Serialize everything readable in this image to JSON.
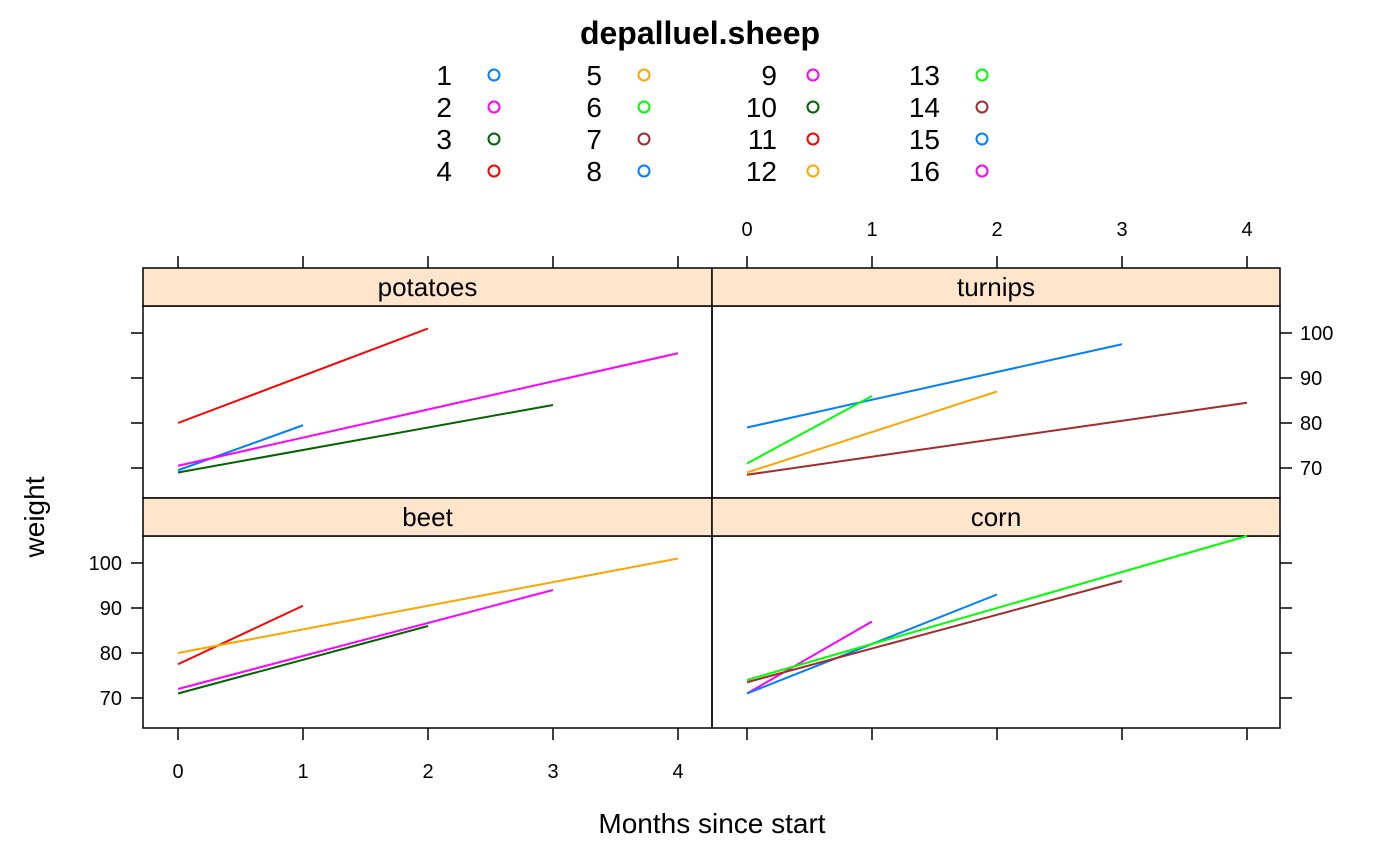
{
  "chart_data": {
    "type": "line",
    "title": "depalluel.sheep",
    "xlabel": "Months since start",
    "ylabel": "weight",
    "xlim": [
      0,
      4
    ],
    "ylim": [
      66,
      108
    ],
    "x_ticks": [
      0,
      1,
      2,
      3,
      4
    ],
    "y_ticks": [
      70,
      80,
      90,
      100
    ],
    "legend": {
      "position": "top",
      "entries": [
        {
          "label": "1",
          "color": "#0080ff"
        },
        {
          "label": "2",
          "color": "#ff00ff"
        },
        {
          "label": "3",
          "color": "#006400"
        },
        {
          "label": "4",
          "color": "#ff0000"
        },
        {
          "label": "5",
          "color": "#ffa500"
        },
        {
          "label": "6",
          "color": "#00ff00"
        },
        {
          "label": "7",
          "color": "#a52a2a"
        },
        {
          "label": "8",
          "color": "#0080ff"
        },
        {
          "label": "9",
          "color": "#ff00ff"
        },
        {
          "label": "10",
          "color": "#006400"
        },
        {
          "label": "11",
          "color": "#ff0000"
        },
        {
          "label": "12",
          "color": "#ffa500"
        },
        {
          "label": "13",
          "color": "#00ff00"
        },
        {
          "label": "14",
          "color": "#a52a2a"
        },
        {
          "label": "15",
          "color": "#0080ff"
        },
        {
          "label": "16",
          "color": "#ff00ff"
        }
      ]
    },
    "panels": [
      {
        "name": "potatoes",
        "series": [
          {
            "color": "#ff0000",
            "x": [
              0,
              2
            ],
            "y": [
              80,
              101
            ]
          },
          {
            "color": "#0080ff",
            "x": [
              0,
              1
            ],
            "y": [
              69.5,
              79.5
            ]
          },
          {
            "color": "#ff00ff",
            "x": [
              0,
              4
            ],
            "y": [
              70.5,
              95.5
            ]
          },
          {
            "color": "#006400",
            "x": [
              0,
              3
            ],
            "y": [
              69,
              84
            ]
          }
        ]
      },
      {
        "name": "turnips",
        "series": [
          {
            "color": "#0080ff",
            "x": [
              0,
              3
            ],
            "y": [
              79,
              97.5
            ]
          },
          {
            "color": "#00ff00",
            "x": [
              0,
              1
            ],
            "y": [
              71,
              86
            ]
          },
          {
            "color": "#ffa500",
            "x": [
              0,
              2
            ],
            "y": [
              69,
              87
            ]
          },
          {
            "color": "#a52a2a",
            "x": [
              0,
              4
            ],
            "y": [
              68.5,
              84.5
            ]
          }
        ]
      },
      {
        "name": "beet",
        "series": [
          {
            "color": "#ff0000",
            "x": [
              0,
              1
            ],
            "y": [
              77.5,
              90.5
            ]
          },
          {
            "color": "#ffa500",
            "x": [
              0,
              4
            ],
            "y": [
              80,
              101
            ]
          },
          {
            "color": "#ff00ff",
            "x": [
              0,
              3
            ],
            "y": [
              72,
              94
            ]
          },
          {
            "color": "#006400",
            "x": [
              0,
              2
            ],
            "y": [
              71,
              86
            ]
          }
        ]
      },
      {
        "name": "corn",
        "series": [
          {
            "color": "#ff00ff",
            "x": [
              0,
              1
            ],
            "y": [
              71,
              87
            ]
          },
          {
            "color": "#0080ff",
            "x": [
              0,
              2
            ],
            "y": [
              71,
              93
            ]
          },
          {
            "color": "#00ff00",
            "x": [
              0,
              4
            ],
            "y": [
              74,
              106
            ]
          },
          {
            "color": "#a52a2a",
            "x": [
              0,
              3
            ],
            "y": [
              73.5,
              96
            ]
          }
        ]
      }
    ]
  }
}
